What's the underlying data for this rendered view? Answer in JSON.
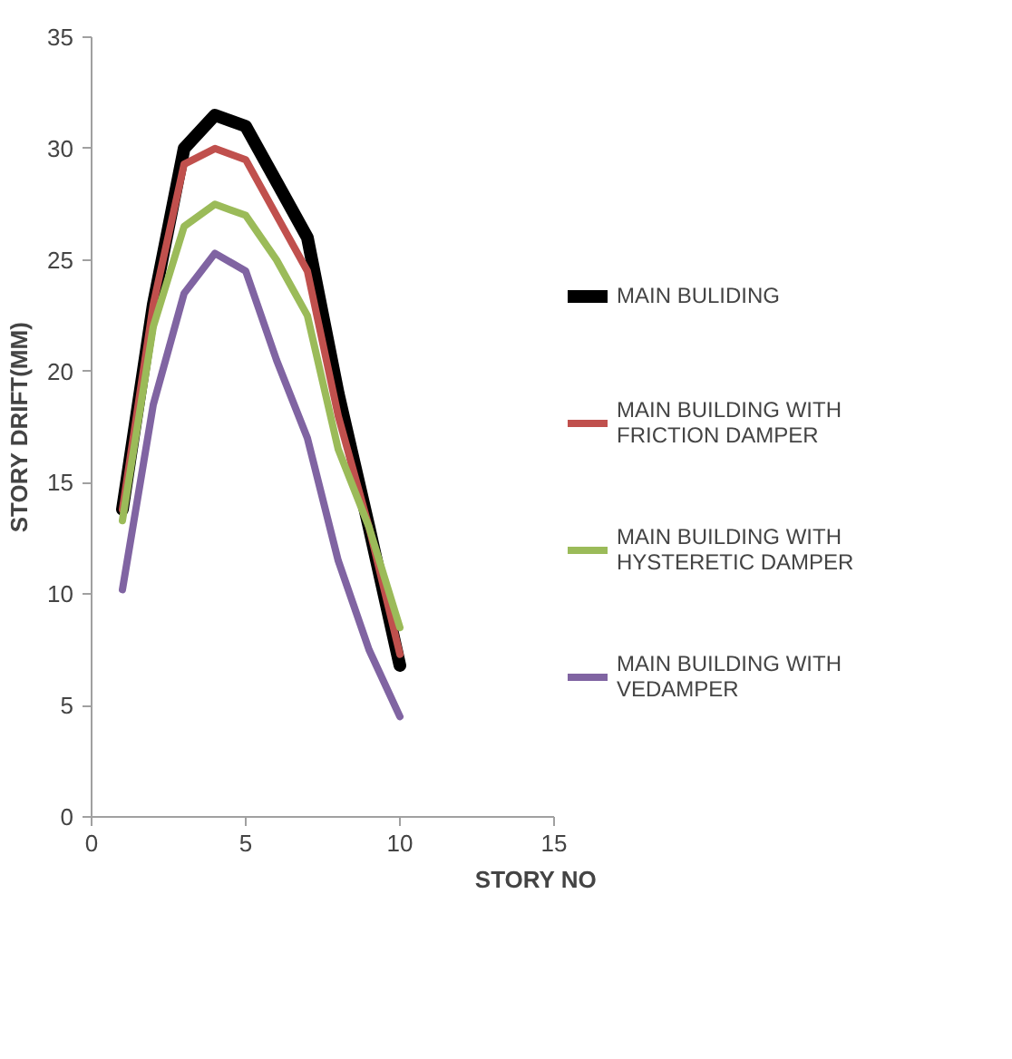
{
  "chart_data": {
    "type": "line",
    "xlabel": "STORY NO",
    "ylabel": "STORY DRIFT(MM)",
    "x": [
      1,
      2,
      3,
      4,
      5,
      6,
      7,
      8,
      9,
      10
    ],
    "xlim": [
      0,
      15
    ],
    "xticks": [
      0,
      5,
      10,
      15
    ],
    "ylim": [
      0,
      35
    ],
    "yticks": [
      0,
      5,
      10,
      15,
      20,
      25,
      30,
      35
    ],
    "grid": false,
    "legend": "right",
    "marker": "none",
    "line_style": "solid",
    "series": [
      {
        "name": "MAIN BULIDING",
        "color": "#000000",
        "values": [
          13.8,
          23,
          30,
          31.5,
          31,
          28.5,
          26,
          19,
          13,
          6.8
        ]
      },
      {
        "name": "MAIN BUILDING WITH FRICTION DAMPER",
        "color": "#c0504d",
        "values": [
          13.8,
          23,
          29.3,
          30,
          29.5,
          27,
          24.5,
          18,
          13,
          7.3
        ]
      },
      {
        "name": "MAIN BUILDING WITH HYSTERETIC DAMPER",
        "color": "#9bbb59",
        "values": [
          13.3,
          22,
          26.5,
          27.5,
          27,
          25,
          22.5,
          16.5,
          13,
          8.5
        ]
      },
      {
        "name": "MAIN BUILDING WITH VEDAMPER",
        "color": "#8064a2",
        "values": [
          10.2,
          18.5,
          23.5,
          25.3,
          24.5,
          20.5,
          17,
          11.5,
          7.5,
          4.5
        ]
      }
    ]
  }
}
